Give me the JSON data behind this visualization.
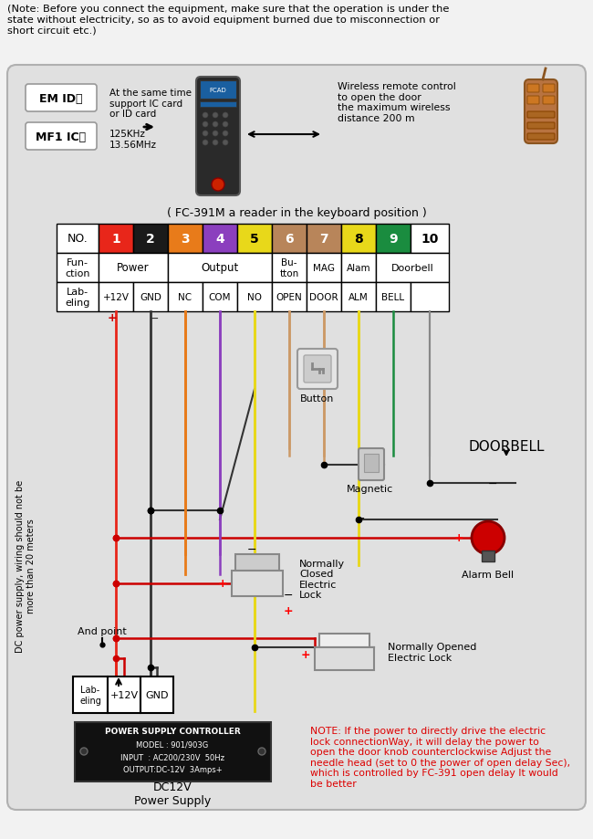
{
  "bg_color": "#e8e8e8",
  "header_note": "(Note: Before you connect the equipment, make sure that the operation is under the\nstate without electricity, so as to avoid equipment burned due to misconnection or\nshort circuit etc.)",
  "reader_label": "( FC-391M a reader in the keyboard position )",
  "pin_colors": [
    "#e8261a",
    "#1a1a1a",
    "#e87b1a",
    "#8b3fbe",
    "#e8d81a",
    "#b8855a",
    "#b8855a",
    "#e8d81a",
    "#1a8c3f",
    "#ffffff"
  ],
  "pin_txt_colors": [
    "white",
    "white",
    "white",
    "white",
    "black",
    "white",
    "white",
    "black",
    "white",
    "black"
  ],
  "pin_nums": [
    "1",
    "2",
    "3",
    "4",
    "5",
    "6",
    "7",
    "8",
    "9",
    "10"
  ],
  "wire_colors": [
    "#e8261a",
    "#333333",
    "#e87b1a",
    "#8b3fbe",
    "#e8d81a",
    "#cc9966",
    "#cc9966",
    "#e8d81a",
    "#1a8c3f",
    "#888888"
  ],
  "note_text": "NOTE: If the power to directly drive the electric\nlock connectionWay, it will delay the power to\nopen the door knob counterclockwise Adjust the\nneedle head (set to 0 the power of open delay Sec),\nwhich is controlled by FC-391 open delay It would\nbe better",
  "power_supply_lines": [
    "POWER SUPPLY CONTROLLER",
    "MODEL : 901/903G",
    "INPUT  : AC200/230V  50Hz",
    "OUTPUT:DC-12V  3Amps+"
  ],
  "dc12v_label": "DC12V\nPower Supply",
  "em_id_label": "EM ID卡",
  "mf1_ic_label": "MF1 IC卡",
  "ic_support_text": "At the same time\nsupport IC card\nor ID card",
  "freq_text": "125KHz\n13.56MHz",
  "wireless_text": "Wireless remote control\nto open the door\nthe maximum wireless\ndistance 200 m",
  "and_point_label": "And point",
  "doorbell_label": "DOORBELL",
  "alarm_bell_label": "Alarm Bell",
  "magnetic_label": "Magnetic",
  "button_label": "Button",
  "nc_lock_label": "Normally\nClosed\nElectric\nLock",
  "no_lock_label": "Normally Opened\nElectric Lock",
  "dc_note": "DC power supply, wiring should not be\nmore than 20 meters"
}
